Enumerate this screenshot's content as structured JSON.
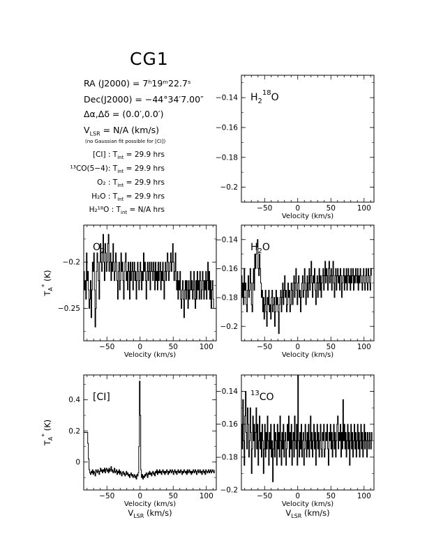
{
  "source_name": "CG1",
  "info": {
    "ra": "RA (J2000)  =  7ʰ19ᵐ22.7ˢ",
    "dec": "Dec(J2000)  =  −44°34′7.00″",
    "offset": "Δα,Δδ  =  (0.0′,0.0′)",
    "vlsr_label": "V",
    "vlsr_sub": "LSR",
    "vlsr_value": "  = N/A  (km/s)",
    "note": "(no Gaussian fit possible for [CI])",
    "integrations": [
      {
        "line": "[CI] :",
        "tint": "29.9 hrs"
      },
      {
        "line": "¹³CO(5−4):",
        "tint": "29.9 hrs"
      },
      {
        "line": "O₂ :",
        "tint": "29.9 hrs"
      },
      {
        "line": "H₂O :",
        "tint": "29.9 hrs"
      },
      {
        "line": "H₂¹⁸O :",
        "tint": "N/A  hrs"
      }
    ],
    "tint_label": "T",
    "tint_sub": "int",
    "tint_eq": " = "
  },
  "axis_text": {
    "xlabel": "Velocity (km/s)",
    "vlsr_xlabel": "V",
    "vlsr_xlabel_sub": "LSR",
    "vlsr_xlabel_unit": " (km/s)",
    "ylabel": "T",
    "ylabel_sub": "A",
    "ylabel_sup": "*",
    "ylabel_unit": " (K)"
  },
  "chart_data": [
    {
      "id": "h218o",
      "type": "line",
      "label_main": "H",
      "label_sub": "2",
      "label_sup": "18",
      "label_tail": "O",
      "xlim": [
        -85,
        115
      ],
      "ylim": [
        -0.21,
        -0.125
      ],
      "xticks": [
        -50,
        0,
        50,
        100
      ],
      "yticks": [
        -0.14,
        -0.16,
        -0.18,
        -0.2
      ],
      "ytick_labels": [
        "−0.14",
        "−0.16",
        "−0.18",
        "−0.2"
      ],
      "ytick_side": "left",
      "show_vlsr_label": false,
      "series": []
    },
    {
      "id": "o2",
      "type": "line",
      "label_main": "O",
      "label_sub": "2",
      "label_sup": "",
      "label_tail": "",
      "xlim": [
        -85,
        115
      ],
      "ylim": [
        -0.285,
        -0.16
      ],
      "xticks": [
        -50,
        0,
        50,
        100
      ],
      "yticks": [
        -0.2,
        -0.25
      ],
      "ytick_labels": [
        "−0.2",
        "−0.25"
      ],
      "ytick_side": "left",
      "show_ylabel": true,
      "show_vlsr_label": false,
      "series": [
        {
          "x_start": -85,
          "x_step": 1.0,
          "values": [
            -0.21,
            -0.23,
            -0.22,
            -0.24,
            -0.19,
            -0.22,
            -0.21,
            -0.23,
            -0.25,
            -0.24,
            -0.22,
            -0.26,
            -0.23,
            -0.2,
            -0.21,
            -0.19,
            -0.23,
            -0.27,
            -0.25,
            -0.21,
            -0.19,
            -0.2,
            -0.22,
            -0.24,
            -0.2,
            -0.18,
            -0.2,
            -0.21,
            -0.19,
            -0.17,
            -0.2,
            -0.22,
            -0.18,
            -0.19,
            -0.21,
            -0.2,
            -0.18,
            -0.17,
            -0.21,
            -0.2,
            -0.19,
            -0.22,
            -0.2,
            -0.21,
            -0.18,
            -0.2,
            -0.22,
            -0.21,
            -0.19,
            -0.2,
            -0.22,
            -0.24,
            -0.21,
            -0.2,
            -0.23,
            -0.22,
            -0.19,
            -0.21,
            -0.2,
            -0.22,
            -0.24,
            -0.21,
            -0.2,
            -0.19,
            -0.22,
            -0.21,
            -0.23,
            -0.2,
            -0.21,
            -0.24,
            -0.2,
            -0.22,
            -0.21,
            -0.2,
            -0.23,
            -0.21,
            -0.2,
            -0.22,
            -0.21,
            -0.24,
            -0.22,
            -0.2,
            -0.21,
            -0.23,
            -0.22,
            -0.2,
            -0.21,
            -0.23,
            -0.21,
            -0.22,
            -0.19,
            -0.21,
            -0.2,
            -0.22,
            -0.24,
            -0.21,
            -0.2,
            -0.22,
            -0.21,
            -0.2,
            -0.23,
            -0.21,
            -0.2,
            -0.21,
            -0.22,
            -0.2,
            -0.21,
            -0.23,
            -0.2,
            -0.22,
            -0.21,
            -0.23,
            -0.2,
            -0.22,
            -0.21,
            -0.2,
            -0.23,
            -0.21,
            -0.22,
            -0.2,
            -0.22,
            -0.24,
            -0.21,
            -0.2,
            -0.22,
            -0.21,
            -0.19,
            -0.2,
            -0.22,
            -0.21,
            -0.2,
            -0.19,
            -0.21,
            -0.2,
            -0.18,
            -0.2,
            -0.22,
            -0.21,
            -0.19,
            -0.22,
            -0.23,
            -0.21,
            -0.24,
            -0.22,
            -0.23,
            -0.21,
            -0.24,
            -0.25,
            -0.23,
            -0.22,
            -0.24,
            -0.26,
            -0.23,
            -0.22,
            -0.24,
            -0.22,
            -0.23,
            -0.25,
            -0.22,
            -0.24,
            -0.23,
            -0.21,
            -0.23,
            -0.22,
            -0.24,
            -0.23,
            -0.21,
            -0.24,
            -0.25,
            -0.22,
            -0.24,
            -0.21,
            -0.23,
            -0.22,
            -0.24,
            -0.21,
            -0.22,
            -0.24,
            -0.23,
            -0.21,
            -0.22,
            -0.24,
            -0.22,
            -0.23,
            -0.21,
            -0.24,
            -0.22,
            -0.2,
            -0.23,
            -0.21,
            -0.24,
            -0.22,
            -0.25,
            -0.23,
            -0.22,
            -0.24,
            -0.25
          ]
        }
      ]
    },
    {
      "id": "h2o",
      "type": "line",
      "label_main": "H",
      "label_sub": "2",
      "label_sup": "",
      "label_tail": "O",
      "xlim": [
        -85,
        115
      ],
      "ylim": [
        -0.21,
        -0.13
      ],
      "xticks": [
        -50,
        0,
        50,
        100
      ],
      "yticks": [
        -0.14,
        -0.16,
        -0.18,
        -0.2
      ],
      "ytick_labels": [
        "−0.14",
        "−0.16",
        "−0.18",
        "−0.2"
      ],
      "ytick_side": "left",
      "show_vlsr_label": false,
      "series": [
        {
          "x_start": -85,
          "x_step": 1.0,
          "values": [
            -0.165,
            -0.18,
            -0.17,
            -0.185,
            -0.16,
            -0.175,
            -0.17,
            -0.185,
            -0.19,
            -0.175,
            -0.165,
            -0.18,
            -0.175,
            -0.16,
            -0.17,
            -0.185,
            -0.19,
            -0.17,
            -0.16,
            -0.175,
            -0.15,
            -0.16,
            -0.15,
            -0.145,
            -0.14,
            -0.16,
            -0.165,
            -0.15,
            -0.16,
            -0.17,
            -0.18,
            -0.175,
            -0.19,
            -0.18,
            -0.195,
            -0.185,
            -0.175,
            -0.19,
            -0.2,
            -0.18,
            -0.185,
            -0.175,
            -0.19,
            -0.185,
            -0.195,
            -0.18,
            -0.175,
            -0.19,
            -0.185,
            -0.18,
            -0.2,
            -0.19,
            -0.175,
            -0.185,
            -0.18,
            -0.19,
            -0.205,
            -0.185,
            -0.18,
            -0.175,
            -0.19,
            -0.18,
            -0.17,
            -0.185,
            -0.175,
            -0.165,
            -0.18,
            -0.175,
            -0.19,
            -0.185,
            -0.17,
            -0.18,
            -0.175,
            -0.19,
            -0.185,
            -0.17,
            -0.175,
            -0.185,
            -0.17,
            -0.165,
            -0.18,
            -0.17,
            -0.16,
            -0.175,
            -0.185,
            -0.17,
            -0.165,
            -0.18,
            -0.175,
            -0.19,
            -0.18,
            -0.17,
            -0.165,
            -0.18,
            -0.175,
            -0.16,
            -0.17,
            -0.185,
            -0.175,
            -0.165,
            -0.18,
            -0.17,
            -0.16,
            -0.175,
            -0.165,
            -0.155,
            -0.17,
            -0.18,
            -0.165,
            -0.17,
            -0.16,
            -0.175,
            -0.185,
            -0.17,
            -0.165,
            -0.18,
            -0.17,
            -0.16,
            -0.175,
            -0.165,
            -0.18,
            -0.17,
            -0.165,
            -0.16,
            -0.175,
            -0.165,
            -0.155,
            -0.17,
            -0.16,
            -0.165,
            -0.175,
            -0.16,
            -0.155,
            -0.17,
            -0.165,
            -0.16,
            -0.175,
            -0.165,
            -0.155,
            -0.17,
            -0.18,
            -0.165,
            -0.16,
            -0.175,
            -0.165,
            -0.16,
            -0.17,
            -0.165,
            -0.175,
            -0.16,
            -0.165,
            -0.18,
            -0.17,
            -0.165,
            -0.16,
            -0.175,
            -0.165,
            -0.17,
            -0.16,
            -0.175,
            -0.165,
            -0.16,
            -0.17,
            -0.165,
            -0.175,
            -0.16,
            -0.17,
            -0.165,
            -0.16,
            -0.175,
            -0.165,
            -0.17,
            -0.16,
            -0.165,
            -0.17,
            -0.16,
            -0.175,
            -0.165,
            -0.17,
            -0.16,
            -0.165,
            -0.17,
            -0.175,
            -0.165,
            -0.16,
            -0.17,
            -0.175,
            -0.165,
            -0.16,
            -0.17,
            -0.175,
            -0.16,
            -0.165,
            -0.17,
            -0.175,
            -0.16,
            -0.165
          ]
        }
      ]
    },
    {
      "id": "ci",
      "type": "line",
      "label_main": "[CI]",
      "label_sub": "",
      "label_sup": "",
      "label_tail": "",
      "xlim": [
        -85,
        115
      ],
      "ylim": [
        -0.18,
        0.56
      ],
      "xticks": [
        -50,
        0,
        50,
        100
      ],
      "yticks": [
        0.4,
        0.2,
        0
      ],
      "ytick_labels": [
        "0.4",
        "0.2",
        "0"
      ],
      "ytick_side": "left",
      "show_ylabel": true,
      "show_vlsr_label": true,
      "series": [
        {
          "x_start": -85,
          "x_step": 1.0,
          "values": [
            0.19,
            0.19,
            0.19,
            0.19,
            0.19,
            0.19,
            0.12,
            0.02,
            -0.05,
            -0.07,
            -0.08,
            -0.06,
            -0.07,
            -0.05,
            -0.08,
            -0.06,
            -0.07,
            -0.09,
            -0.05,
            -0.06,
            -0.07,
            -0.05,
            -0.06,
            -0.08,
            -0.06,
            -0.04,
            -0.06,
            -0.05,
            -0.07,
            -0.05,
            -0.06,
            -0.04,
            -0.07,
            -0.05,
            -0.04,
            -0.06,
            -0.05,
            -0.07,
            -0.04,
            -0.06,
            -0.05,
            -0.03,
            -0.06,
            -0.05,
            -0.07,
            -0.06,
            -0.04,
            -0.07,
            -0.06,
            -0.05,
            -0.08,
            -0.06,
            -0.07,
            -0.05,
            -0.08,
            -0.06,
            -0.07,
            -0.09,
            -0.07,
            -0.06,
            -0.08,
            -0.07,
            -0.09,
            -0.08,
            -0.06,
            -0.08,
            -0.07,
            -0.09,
            -0.08,
            -0.1,
            -0.08,
            -0.07,
            -0.09,
            -0.08,
            -0.1,
            -0.09,
            -0.08,
            -0.1,
            -0.09,
            -0.11,
            -0.08,
            -0.09,
            -0.07,
            0.1,
            0.52,
            0.3,
            -0.05,
            -0.1,
            -0.08,
            -0.11,
            -0.09,
            -0.1,
            -0.08,
            -0.09,
            -0.07,
            -0.08,
            -0.1,
            -0.07,
            -0.08,
            -0.06,
            -0.08,
            -0.07,
            -0.09,
            -0.07,
            -0.06,
            -0.08,
            -0.07,
            -0.09,
            -0.06,
            -0.07,
            -0.05,
            -0.08,
            -0.06,
            -0.07,
            -0.05,
            -0.07,
            -0.06,
            -0.08,
            -0.06,
            -0.05,
            -0.07,
            -0.06,
            -0.08,
            -0.06,
            -0.07,
            -0.05,
            -0.06,
            -0.08,
            -0.06,
            -0.07,
            -0.05,
            -0.06,
            -0.07,
            -0.05,
            -0.06,
            -0.08,
            -0.06,
            -0.05,
            -0.07,
            -0.06,
            -0.08,
            -0.06,
            -0.05,
            -0.07,
            -0.06,
            -0.07,
            -0.05,
            -0.06,
            -0.08,
            -0.06,
            -0.07,
            -0.05,
            -0.06,
            -0.07,
            -0.06,
            -0.08,
            -0.05,
            -0.07,
            -0.06,
            -0.05,
            -0.07,
            -0.06,
            -0.08,
            -0.06,
            -0.07,
            -0.05,
            -0.06,
            -0.07,
            -0.05,
            -0.06,
            -0.08,
            -0.06,
            -0.05,
            -0.07,
            -0.06,
            -0.05,
            -0.07,
            -0.06,
            -0.08,
            -0.06,
            -0.05,
            -0.07,
            -0.06,
            -0.08,
            -0.05,
            -0.06,
            -0.07,
            -0.06,
            -0.05,
            -0.07,
            -0.06,
            -0.05,
            -0.07,
            -0.06,
            -0.05,
            -0.06,
            -0.07,
            -0.05
          ]
        }
      ]
    },
    {
      "id": "13co",
      "type": "line",
      "label_main": "",
      "label_sub": "",
      "label_sup": "13",
      "label_tail": "CO",
      "xlim": [
        -85,
        115
      ],
      "ylim": [
        -0.2,
        -0.13
      ],
      "xticks": [
        -50,
        0,
        50,
        100
      ],
      "yticks": [
        -0.14,
        -0.16,
        -0.18,
        -0.2
      ],
      "ytick_labels": [
        "−0.14",
        "−0.16",
        "−0.18",
        "−0.2"
      ],
      "ytick_side": "left",
      "show_vlsr_label": true,
      "series": [
        {
          "x_start": -85,
          "x_step": 1.0,
          "values": [
            -0.16,
            -0.175,
            -0.145,
            -0.17,
            -0.185,
            -0.155,
            -0.14,
            -0.165,
            -0.175,
            -0.15,
            -0.16,
            -0.18,
            -0.17,
            -0.15,
            -0.165,
            -0.19,
            -0.175,
            -0.155,
            -0.17,
            -0.16,
            -0.18,
            -0.165,
            -0.15,
            -0.175,
            -0.16,
            -0.185,
            -0.17,
            -0.155,
            -0.175,
            -0.165,
            -0.18,
            -0.16,
            -0.17,
            -0.19,
            -0.175,
            -0.16,
            -0.18,
            -0.165,
            -0.175,
            -0.155,
            -0.17,
            -0.185,
            -0.165,
            -0.175,
            -0.16,
            -0.18,
            -0.17,
            -0.195,
            -0.175,
            -0.16,
            -0.18,
            -0.165,
            -0.17,
            -0.185,
            -0.16,
            -0.175,
            -0.165,
            -0.18,
            -0.155,
            -0.17,
            -0.185,
            -0.165,
            -0.175,
            -0.16,
            -0.18,
            -0.17,
            -0.165,
            -0.185,
            -0.175,
            -0.16,
            -0.17,
            -0.155,
            -0.18,
            -0.165,
            -0.175,
            -0.16,
            -0.185,
            -0.17,
            -0.165,
            -0.18,
            -0.155,
            -0.17,
            -0.175,
            -0.16,
            -0.185,
            -0.13,
            -0.17,
            -0.18,
            -0.165,
            -0.175,
            -0.16,
            -0.18,
            -0.17,
            -0.165,
            -0.185,
            -0.175,
            -0.16,
            -0.17,
            -0.18,
            -0.165,
            -0.175,
            -0.16,
            -0.18,
            -0.17,
            -0.155,
            -0.175,
            -0.165,
            -0.18,
            -0.17,
            -0.16,
            -0.175,
            -0.165,
            -0.185,
            -0.17,
            -0.16,
            -0.175,
            -0.165,
            -0.18,
            -0.17,
            -0.16,
            -0.175,
            -0.18,
            -0.165,
            -0.17,
            -0.16,
            -0.18,
            -0.175,
            -0.165,
            -0.17,
            -0.16,
            -0.175,
            -0.185,
            -0.165,
            -0.17,
            -0.16,
            -0.175,
            -0.165,
            -0.18,
            -0.17,
            -0.16,
            -0.175,
            -0.165,
            -0.18,
            -0.17,
            -0.16,
            -0.155,
            -0.175,
            -0.165,
            -0.17,
            -0.16,
            -0.18,
            -0.165,
            -0.175,
            -0.145,
            -0.17,
            -0.16,
            -0.175,
            -0.165,
            -0.18,
            -0.17,
            -0.16,
            -0.175,
            -0.165,
            -0.185,
            -0.17,
            -0.16,
            -0.175,
            -0.165,
            -0.18,
            -0.17,
            -0.16,
            -0.175,
            -0.165,
            -0.18,
            -0.17,
            -0.16,
            -0.175,
            -0.165,
            -0.18,
            -0.17,
            -0.16,
            -0.175,
            -0.165,
            -0.18,
            -0.17,
            -0.16,
            -0.175,
            -0.165,
            -0.17,
            -0.18,
            -0.165,
            -0.17,
            -0.175,
            -0.165,
            -0.17,
            -0.175,
            -0.165,
            -0.17
          ]
        }
      ]
    }
  ]
}
